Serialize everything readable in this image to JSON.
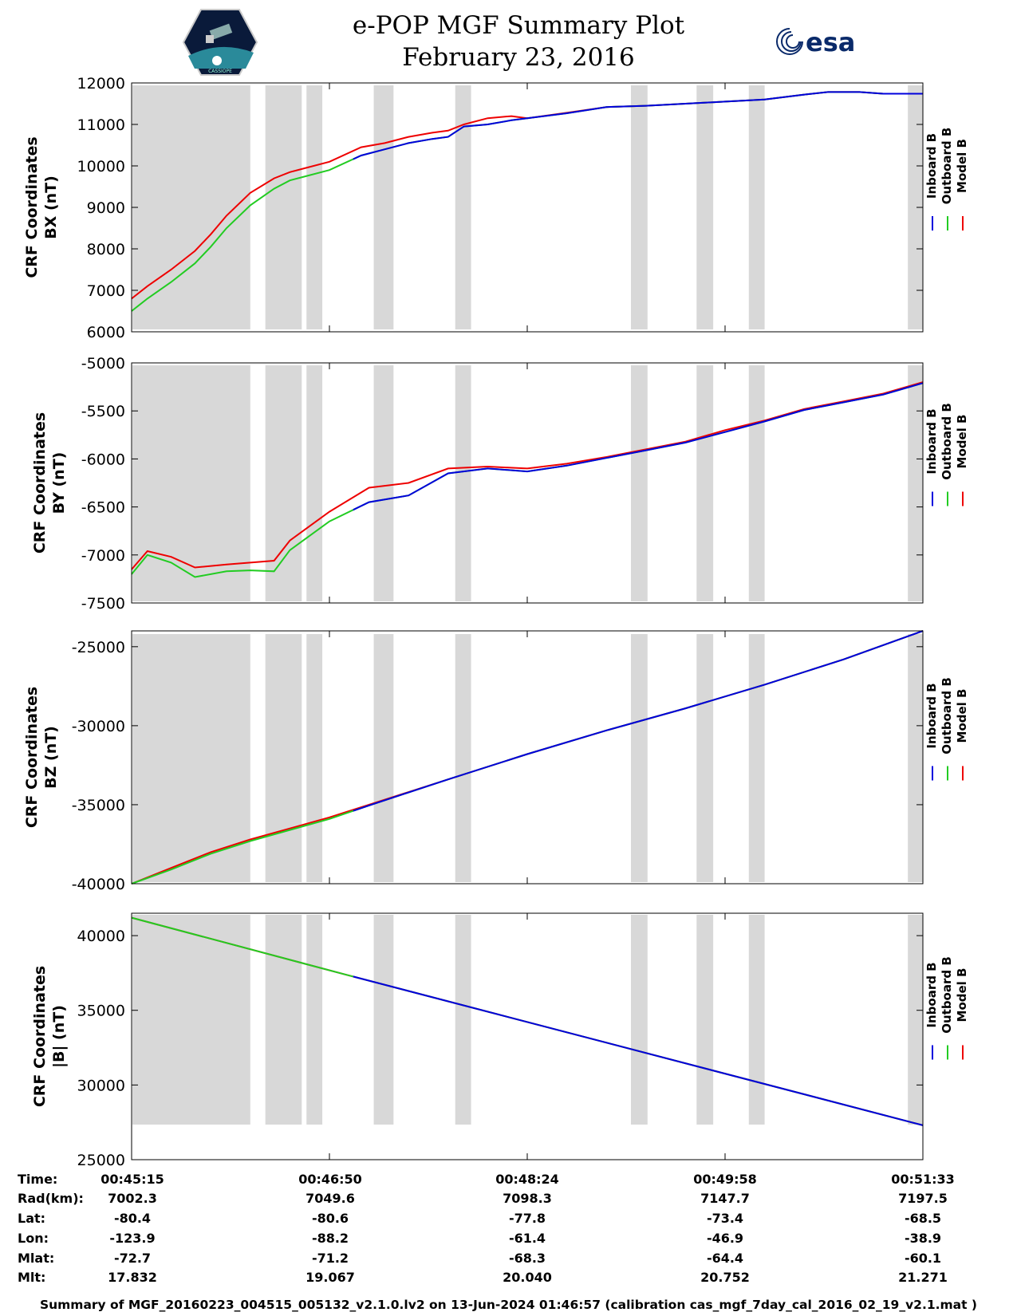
{
  "header": {
    "title": "e-POP MGF Summary Plot",
    "date": "February 23, 2016",
    "logo_left_text": "CASSIOPE",
    "logo_right_text": "esa"
  },
  "colors": {
    "inboard": "#0000dd",
    "outboard": "#22cc22",
    "model": "#ee0000",
    "gap": "#d8d8d8"
  },
  "chart_data": [
    {
      "type": "line",
      "ylabel_line1": "CRF Coordinates",
      "ylabel_line2": "BX (nT)",
      "ylim": [
        6000,
        12000
      ],
      "yticks": [
        6000,
        7000,
        8000,
        9000,
        10000,
        11000,
        12000
      ],
      "legend": [
        "Inboard B",
        "Outboard B",
        "Model B"
      ],
      "series": [
        {
          "name": "Model B",
          "x": [
            0.0,
            0.02,
            0.05,
            0.08,
            0.1,
            0.12,
            0.15,
            0.18,
            0.2,
            0.25,
            0.29,
            0.32,
            0.35,
            0.38,
            0.4,
            0.42,
            0.45,
            0.48,
            0.5,
            0.55,
            0.6,
            0.65,
            0.7,
            0.75,
            0.8,
            0.85,
            0.88,
            0.92,
            0.95,
            1.0
          ],
          "values": [
            6800,
            7100,
            7500,
            7950,
            8350,
            8800,
            9350,
            9700,
            9850,
            10100,
            10450,
            10550,
            10700,
            10800,
            10850,
            11000,
            11150,
            11200,
            11150,
            11280,
            11420,
            11450,
            11500,
            11550,
            11600,
            11720,
            11780,
            11780,
            11740,
            11740
          ]
        },
        {
          "name": "Outboard B",
          "x": [
            0.0,
            0.02,
            0.05,
            0.08,
            0.1,
            0.12,
            0.15,
            0.18,
            0.2,
            0.25,
            0.29,
            0.32,
            0.35,
            0.38,
            0.4,
            0.42,
            0.45,
            0.48,
            0.5,
            0.55,
            0.6,
            0.65,
            0.7,
            0.75,
            0.8,
            0.85,
            0.88,
            0.92,
            0.95,
            1.0
          ],
          "values": [
            6500,
            6800,
            7200,
            7650,
            8050,
            8500,
            9050,
            9450,
            9650,
            9900,
            10250,
            10400,
            10550,
            10650,
            10700,
            10950,
            11000,
            11100,
            11150,
            11270,
            11420,
            11450,
            11500,
            11550,
            11600,
            11720,
            11780,
            11780,
            11740,
            11740
          ]
        },
        {
          "name": "Inboard B",
          "x": [
            0.0,
            0.02,
            0.05,
            0.08,
            0.1,
            0.12,
            0.15,
            0.18,
            0.2,
            0.25,
            0.29,
            0.32,
            0.35,
            0.38,
            0.4,
            0.42,
            0.45,
            0.48,
            0.5,
            0.55,
            0.6,
            0.65,
            0.7,
            0.75,
            0.8,
            0.85,
            0.88,
            0.92,
            0.95,
            1.0
          ],
          "values": [
            6500,
            6800,
            7200,
            7650,
            8050,
            8500,
            9050,
            9450,
            9650,
            9900,
            10250,
            10400,
            10550,
            10650,
            10700,
            10950,
            11000,
            11100,
            11150,
            11270,
            11420,
            11450,
            11500,
            11550,
            11600,
            11720,
            11780,
            11780,
            11740,
            11740
          ]
        }
      ]
    },
    {
      "type": "line",
      "ylabel_line1": "CRF Coordinates",
      "ylabel_line2": "BY (nT)",
      "ylim": [
        -7500,
        -5000
      ],
      "yticks": [
        -7500,
        -7000,
        -6500,
        -6000,
        -5500,
        -5000
      ],
      "legend": [
        "Inboard B",
        "Outboard B",
        "Model B"
      ],
      "series": [
        {
          "name": "Model B",
          "x": [
            0.0,
            0.02,
            0.05,
            0.08,
            0.12,
            0.15,
            0.18,
            0.2,
            0.25,
            0.3,
            0.35,
            0.4,
            0.45,
            0.5,
            0.55,
            0.6,
            0.65,
            0.7,
            0.75,
            0.8,
            0.85,
            0.9,
            0.95,
            1.0
          ],
          "values": [
            -7150,
            -6960,
            -7020,
            -7130,
            -7100,
            -7080,
            -7060,
            -6850,
            -6550,
            -6300,
            -6250,
            -6100,
            -6080,
            -6100,
            -6050,
            -5980,
            -5900,
            -5820,
            -5700,
            -5600,
            -5480,
            -5400,
            -5320,
            -5200
          ]
        },
        {
          "name": "Outboard B",
          "x": [
            0.0,
            0.02,
            0.05,
            0.08,
            0.12,
            0.15,
            0.18,
            0.2,
            0.25,
            0.3,
            0.35,
            0.4,
            0.45,
            0.5,
            0.55,
            0.6,
            0.65,
            0.7,
            0.75,
            0.8,
            0.85,
            0.9,
            0.95,
            1.0
          ],
          "values": [
            -7200,
            -7000,
            -7080,
            -7230,
            -7170,
            -7160,
            -7170,
            -6950,
            -6650,
            -6450,
            -6380,
            -6150,
            -6100,
            -6130,
            -6070,
            -5990,
            -5910,
            -5830,
            -5720,
            -5610,
            -5490,
            -5410,
            -5330,
            -5210
          ]
        },
        {
          "name": "Inboard B",
          "x": [
            0.0,
            0.02,
            0.05,
            0.08,
            0.12,
            0.15,
            0.18,
            0.2,
            0.25,
            0.3,
            0.35,
            0.4,
            0.45,
            0.5,
            0.55,
            0.6,
            0.65,
            0.7,
            0.75,
            0.8,
            0.85,
            0.9,
            0.95,
            1.0
          ],
          "values": [
            -7200,
            -7000,
            -7080,
            -7230,
            -7170,
            -7160,
            -7170,
            -6950,
            -6650,
            -6450,
            -6380,
            -6150,
            -6100,
            -6130,
            -6070,
            -5990,
            -5910,
            -5830,
            -5720,
            -5610,
            -5490,
            -5410,
            -5330,
            -5210
          ]
        }
      ]
    },
    {
      "type": "line",
      "ylabel_line1": "CRF Coordinates",
      "ylabel_line2": "BZ (nT)",
      "ylim": [
        -40000,
        -24000
      ],
      "yticks": [
        -40000,
        -35000,
        -30000,
        -25000
      ],
      "legend": [
        "Inboard B",
        "Outboard B",
        "Model B"
      ],
      "series": [
        {
          "name": "Model B",
          "x": [
            0.0,
            0.05,
            0.1,
            0.15,
            0.2,
            0.25,
            0.3,
            0.4,
            0.5,
            0.6,
            0.7,
            0.8,
            0.9,
            1.0
          ],
          "values": [
            -40000,
            -39000,
            -38000,
            -37200,
            -36500,
            -35800,
            -35000,
            -33400,
            -31800,
            -30300,
            -28900,
            -27400,
            -25800,
            -24000
          ]
        },
        {
          "name": "Outboard B",
          "x": [
            0.0,
            0.05,
            0.1,
            0.15,
            0.2,
            0.25,
            0.3,
            0.4,
            0.5,
            0.6,
            0.7,
            0.8,
            0.9,
            1.0
          ],
          "values": [
            -40000,
            -39100,
            -38100,
            -37300,
            -36600,
            -35900,
            -35050,
            -33400,
            -31800,
            -30300,
            -28900,
            -27400,
            -25800,
            -24000
          ]
        },
        {
          "name": "Inboard B",
          "x": [
            0.0,
            0.05,
            0.1,
            0.15,
            0.2,
            0.25,
            0.3,
            0.4,
            0.5,
            0.6,
            0.7,
            0.8,
            0.9,
            1.0
          ],
          "values": [
            -40000,
            -39100,
            -38100,
            -37300,
            -36600,
            -35900,
            -35050,
            -33400,
            -31800,
            -30300,
            -28900,
            -27400,
            -25800,
            -24000
          ]
        }
      ]
    },
    {
      "type": "line",
      "ylabel_line1": "CRF Coordinates",
      "ylabel_line2": "|B| (nT)",
      "ylim": [
        25000,
        41500
      ],
      "yticks": [
        25000,
        30000,
        35000,
        40000
      ],
      "legend": [
        "Inboard B",
        "Outboard B",
        "Model B"
      ],
      "series": [
        {
          "name": "Model B",
          "x": [
            0.0,
            0.27,
            1.0
          ],
          "values": [
            41200,
            37400,
            27300
          ]
        },
        {
          "name": "Outboard B",
          "x": [
            0.0,
            0.27,
            1.0
          ],
          "values": [
            41200,
            37400,
            27300
          ]
        },
        {
          "name": "Inboard B",
          "x": [
            0.0,
            0.27,
            1.0
          ],
          "values": [
            41200,
            37400,
            27300
          ]
        }
      ]
    }
  ],
  "gaps": [
    [
      0.0,
      0.15
    ],
    [
      0.168,
      0.215
    ],
    [
      0.22,
      0.241
    ],
    [
      0.305,
      0.331
    ],
    [
      0.408,
      0.429
    ],
    [
      0.63,
      0.652
    ],
    [
      0.713,
      0.735
    ],
    [
      0.779,
      0.8
    ],
    [
      0.98,
      1.0
    ]
  ],
  "x_ticks": [
    0.0,
    0.25,
    0.5,
    0.75,
    1.0
  ],
  "info_table": {
    "labels": [
      "Time:",
      "Rad(km):",
      "Lat:",
      "Lon:",
      "Mlat:",
      "Mlt:"
    ],
    "columns": [
      [
        "00:45:15",
        "7002.3",
        "-80.4",
        "-123.9",
        "-72.7",
        "17.832"
      ],
      [
        "00:46:50",
        "7049.6",
        "-80.6",
        "-88.2",
        "-71.2",
        "19.067"
      ],
      [
        "00:48:24",
        "7098.3",
        "-77.8",
        "-61.4",
        "-68.3",
        "20.040"
      ],
      [
        "00:49:58",
        "7147.7",
        "-73.4",
        "-46.9",
        "-64.4",
        "20.752"
      ],
      [
        "00:51:33",
        "7197.5",
        "-68.5",
        "-38.9",
        "-60.1",
        "21.271"
      ]
    ]
  },
  "footer": "Summary of MGF_20160223_004515_005132_v2.1.0.lv2 on 13-Jun-2024 01:46:57 (calibration cas_mgf_7day_cal_2016_02_19_v2.1.mat )"
}
